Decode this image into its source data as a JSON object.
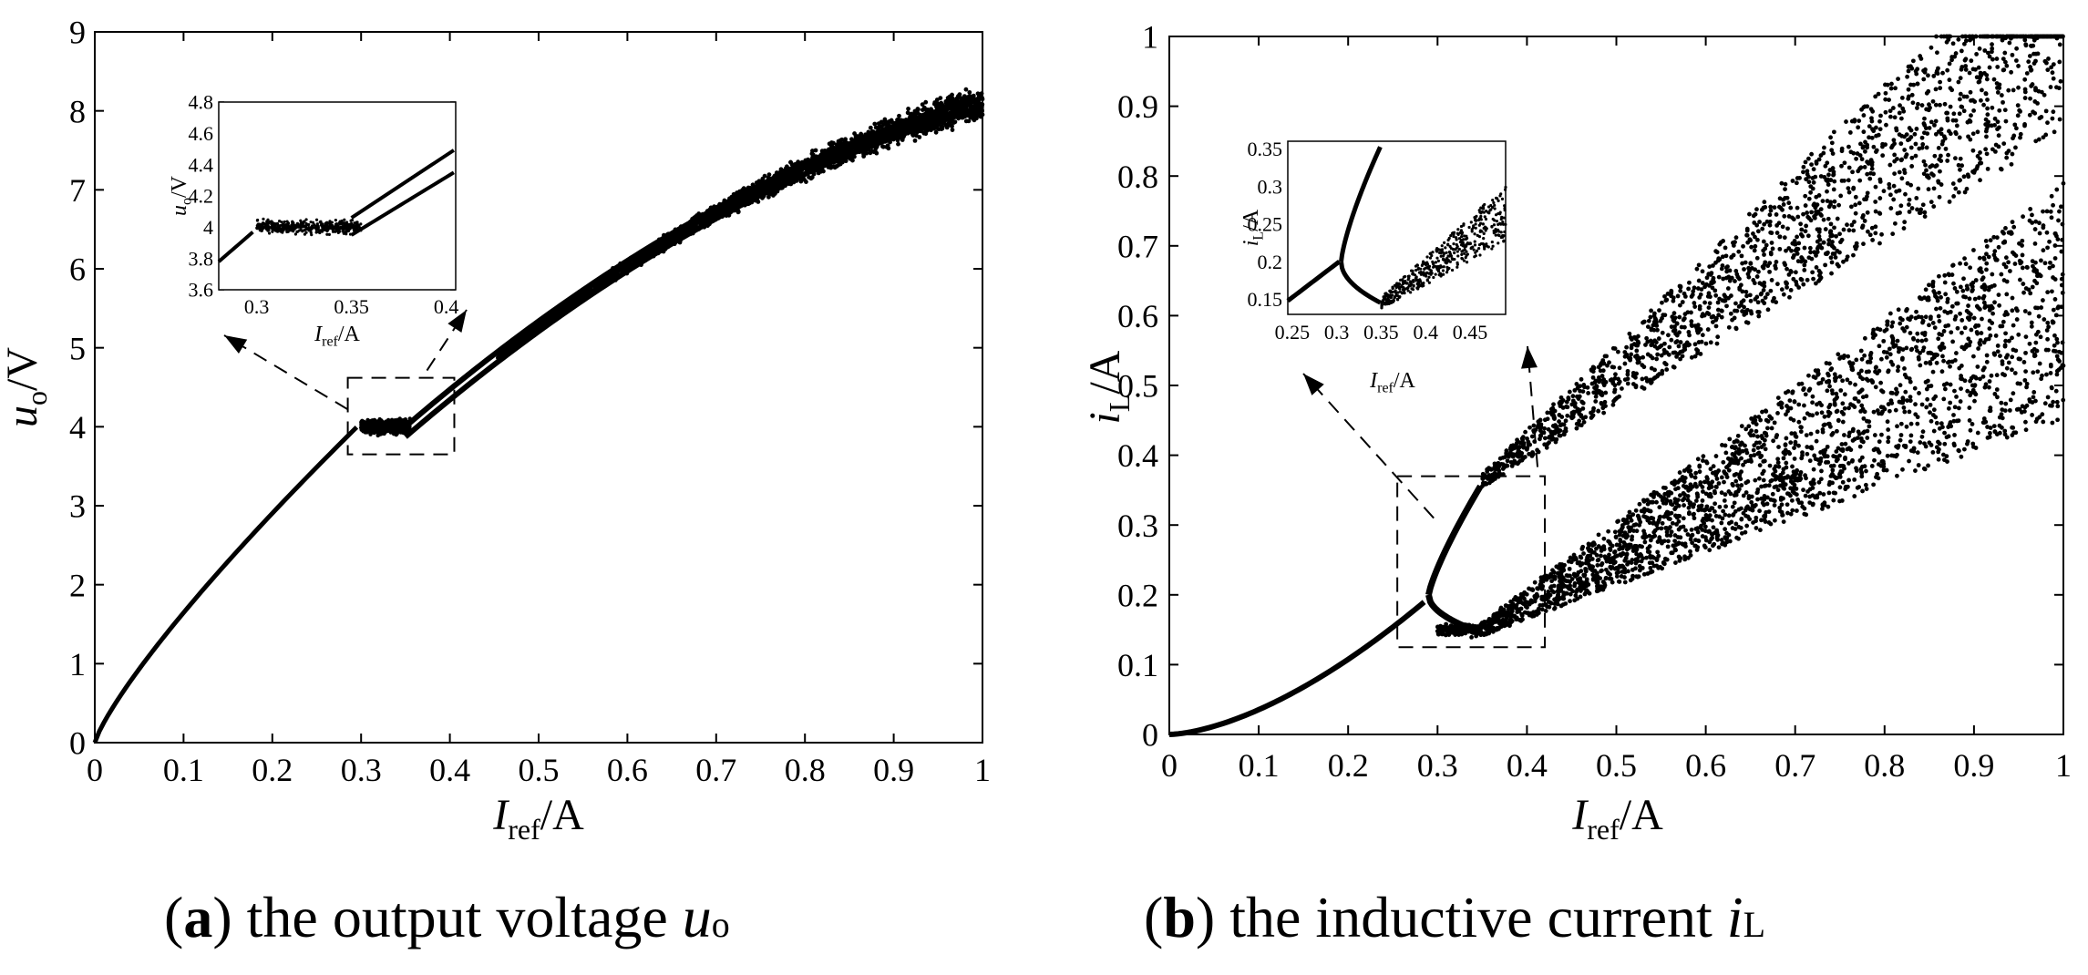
{
  "chart_data": [
    {
      "type": "scatter",
      "panel": "a",
      "title": "",
      "xlabel": {
        "main": "I",
        "sub": "ref",
        "unit": "/A"
      },
      "ylabel": {
        "main": "u",
        "sub": "o",
        "unit": "/V"
      },
      "xlim": [
        0,
        1
      ],
      "ylim": [
        0,
        9
      ],
      "xticks": [
        "0",
        "0.1",
        "0.2",
        "0.3",
        "0.4",
        "0.5",
        "0.6",
        "0.7",
        "0.8",
        "0.9",
        "1"
      ],
      "yticks": [
        "0",
        "1",
        "2",
        "3",
        "4",
        "5",
        "6",
        "7",
        "8",
        "9"
      ],
      "description_series": [
        {
          "name": "single branch",
          "x": [
            0,
            0.05,
            0.1,
            0.15,
            0.2,
            0.25,
            0.3
          ],
          "y": [
            0,
            0.9,
            1.7,
            2.4,
            3.0,
            3.55,
            4.05
          ]
        },
        {
          "name": "chaotic band",
          "x": [
            0.3,
            0.355
          ],
          "y": [
            4.0,
            4.0
          ],
          "spread": 0.12
        },
        {
          "name": "upper branch",
          "x": [
            0.355,
            0.4,
            0.5,
            0.6,
            0.7,
            0.8,
            0.9,
            1.0
          ],
          "y": [
            4.05,
            4.5,
            5.35,
            6.1,
            6.85,
            7.45,
            8.0,
            8.5
          ]
        },
        {
          "name": "lower branch",
          "x": [
            0.35,
            0.4,
            0.5,
            0.6,
            0.7,
            0.8,
            0.9,
            1.0
          ],
          "y": [
            3.95,
            4.35,
            5.2,
            6.0,
            6.75,
            7.35,
            7.9,
            8.4
          ]
        }
      ],
      "zoom_box": {
        "xlim": [
          0.285,
          0.405
        ],
        "ylim": [
          3.65,
          4.62
        ]
      },
      "inset": {
        "xlim": [
          0.28,
          0.405
        ],
        "ylim": [
          3.6,
          4.8
        ],
        "xticks": [
          "0.3",
          "0.35",
          "0.4"
        ],
        "yticks": [
          "3.6",
          "3.8",
          "4",
          "4.2",
          "4.4",
          "4.6",
          "4.8"
        ],
        "xlabel": {
          "main": "I",
          "sub": "ref",
          "unit": "/A"
        },
        "ylabel": {
          "main": "u",
          "sub": "o",
          "unit": "/V"
        }
      }
    },
    {
      "type": "scatter",
      "panel": "b",
      "title": "",
      "xlabel": {
        "main": "I",
        "sub": "ref",
        "unit": "/A"
      },
      "ylabel": {
        "main": "i",
        "sub": "L",
        "unit": "/A"
      },
      "xlim": [
        0,
        1
      ],
      "ylim": [
        0,
        1
      ],
      "xticks": [
        "0",
        "0.1",
        "0.2",
        "0.3",
        "0.4",
        "0.5",
        "0.6",
        "0.7",
        "0.8",
        "0.9",
        "1"
      ],
      "yticks": [
        "0",
        "0.1",
        "0.2",
        "0.3",
        "0.4",
        "0.5",
        "0.6",
        "0.7",
        "0.8",
        "0.9",
        "1"
      ],
      "description_series": [
        {
          "name": "single branch",
          "x": [
            0,
            0.1,
            0.2,
            0.3
          ],
          "y": [
            0,
            0.045,
            0.11,
            0.2
          ]
        },
        {
          "name": "upper branch",
          "x": [
            0.3,
            0.35,
            0.5,
            0.7,
            1.0
          ],
          "y": [
            0.2,
            0.36,
            0.47,
            0.62,
            0.98
          ]
        },
        {
          "name": "lower branch",
          "x": [
            0.32,
            0.35,
            0.5,
            0.7,
            1.0
          ],
          "y": [
            0.14,
            0.15,
            0.3,
            0.5,
            0.6
          ]
        }
      ],
      "zoom_box": {
        "xlim": [
          0.255,
          0.42
        ],
        "ylim": [
          0.125,
          0.37
        ]
      },
      "inset": {
        "xlim": [
          0.245,
          0.49
        ],
        "ylim": [
          0.13,
          0.36
        ],
        "xticks": [
          "0.25",
          "0.3",
          "0.35",
          "0.4",
          "0.45"
        ],
        "yticks": [
          "0.15",
          "0.2",
          "0.25",
          "0.3",
          "0.35"
        ],
        "xlabel": {
          "main": "I",
          "sub": "ref",
          "unit": "/A"
        },
        "ylabel": {
          "main": "i",
          "sub": "L",
          "unit": "/A"
        }
      }
    }
  ],
  "captions": [
    {
      "letter": "a",
      "text": " the output voltage ",
      "symbol": "u",
      "sub": "o"
    },
    {
      "letter": "b",
      "text": " the inductive current ",
      "symbol": "i",
      "sub": "L"
    }
  ]
}
